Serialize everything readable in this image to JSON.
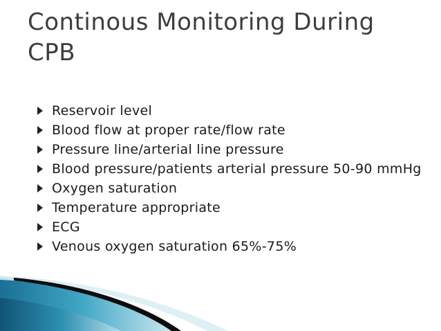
{
  "slide": {
    "title": "Continous Monitoring During CPB",
    "bullet_icon": "triangle-right-icon",
    "accent_color": "#1a7fa3",
    "bullets": [
      "Reservoir level",
      "Blood flow at proper rate/flow rate",
      "Pressure line/arterial line pressure",
      "Blood pressure/patients arterial pressure 50-90 mmHg",
      "Oxygen saturation",
      "Temperature appropriate",
      "ECG",
      "Venous oxygen saturation 65%-75%"
    ]
  }
}
